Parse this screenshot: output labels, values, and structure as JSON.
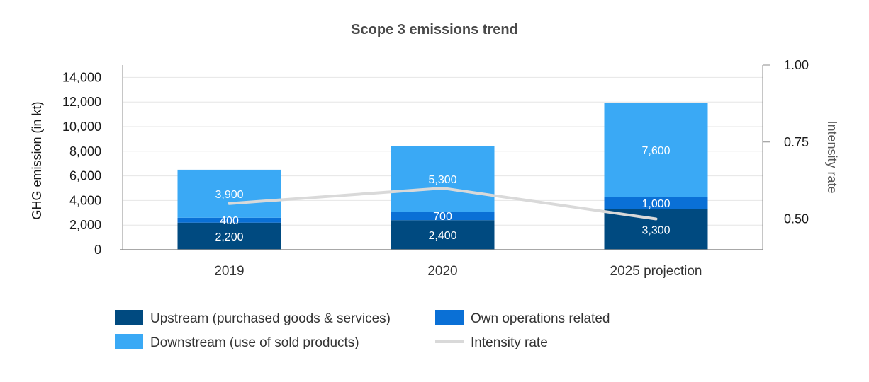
{
  "chart_data": {
    "type": "bar",
    "stacked": true,
    "title": "Scope 3 emissions trend",
    "categories": [
      "2019",
      "2020",
      "2025 projection"
    ],
    "series": [
      {
        "name": "Upstream (purchased goods & services)",
        "color": "#004a80",
        "values": [
          2200,
          2400,
          3300
        ],
        "labels": [
          "2,200",
          "2,400",
          "3,300"
        ]
      },
      {
        "name": "Own operations related",
        "color": "#0a70d6",
        "values": [
          400,
          700,
          1000
        ],
        "labels": [
          "400",
          "700",
          "1,000"
        ]
      },
      {
        "name": "Downstream (use of sold products)",
        "color": "#3aa9f5",
        "values": [
          3900,
          5300,
          7600
        ],
        "labels": [
          "3,900",
          "5,300",
          "7,600"
        ]
      }
    ],
    "line_series": {
      "name": "Intensity rate",
      "color": "#d9d9d9",
      "values": [
        0.55,
        0.6,
        0.5
      ]
    },
    "ylabel": "GHG emission (in kt)",
    "ylim": [
      0,
      15000
    ],
    "yticks": [
      0,
      2000,
      4000,
      6000,
      8000,
      10000,
      12000,
      14000
    ],
    "ytick_labels": [
      "0",
      "2,000",
      "4,000",
      "6,000",
      "8,000",
      "10,000",
      "12,000",
      "14,000"
    ],
    "y2label": "Intensity rate",
    "y2lim": [
      0.4,
      1.0
    ],
    "y2ticks": [
      0.5,
      0.75,
      1.0
    ],
    "y2tick_labels": [
      "0.50",
      "0.75",
      "1.00"
    ],
    "legend": [
      {
        "label": "Upstream (purchased goods & services)",
        "kind": "box",
        "color": "#004a80"
      },
      {
        "label": "Own operations related",
        "kind": "box",
        "color": "#0a70d6"
      },
      {
        "label": "Downstream (use of sold products)",
        "kind": "box",
        "color": "#3aa9f5"
      },
      {
        "label": "Intensity rate",
        "kind": "line",
        "color": "#d9d9d9"
      }
    ],
    "legend_position": "bottom",
    "grid": true
  }
}
